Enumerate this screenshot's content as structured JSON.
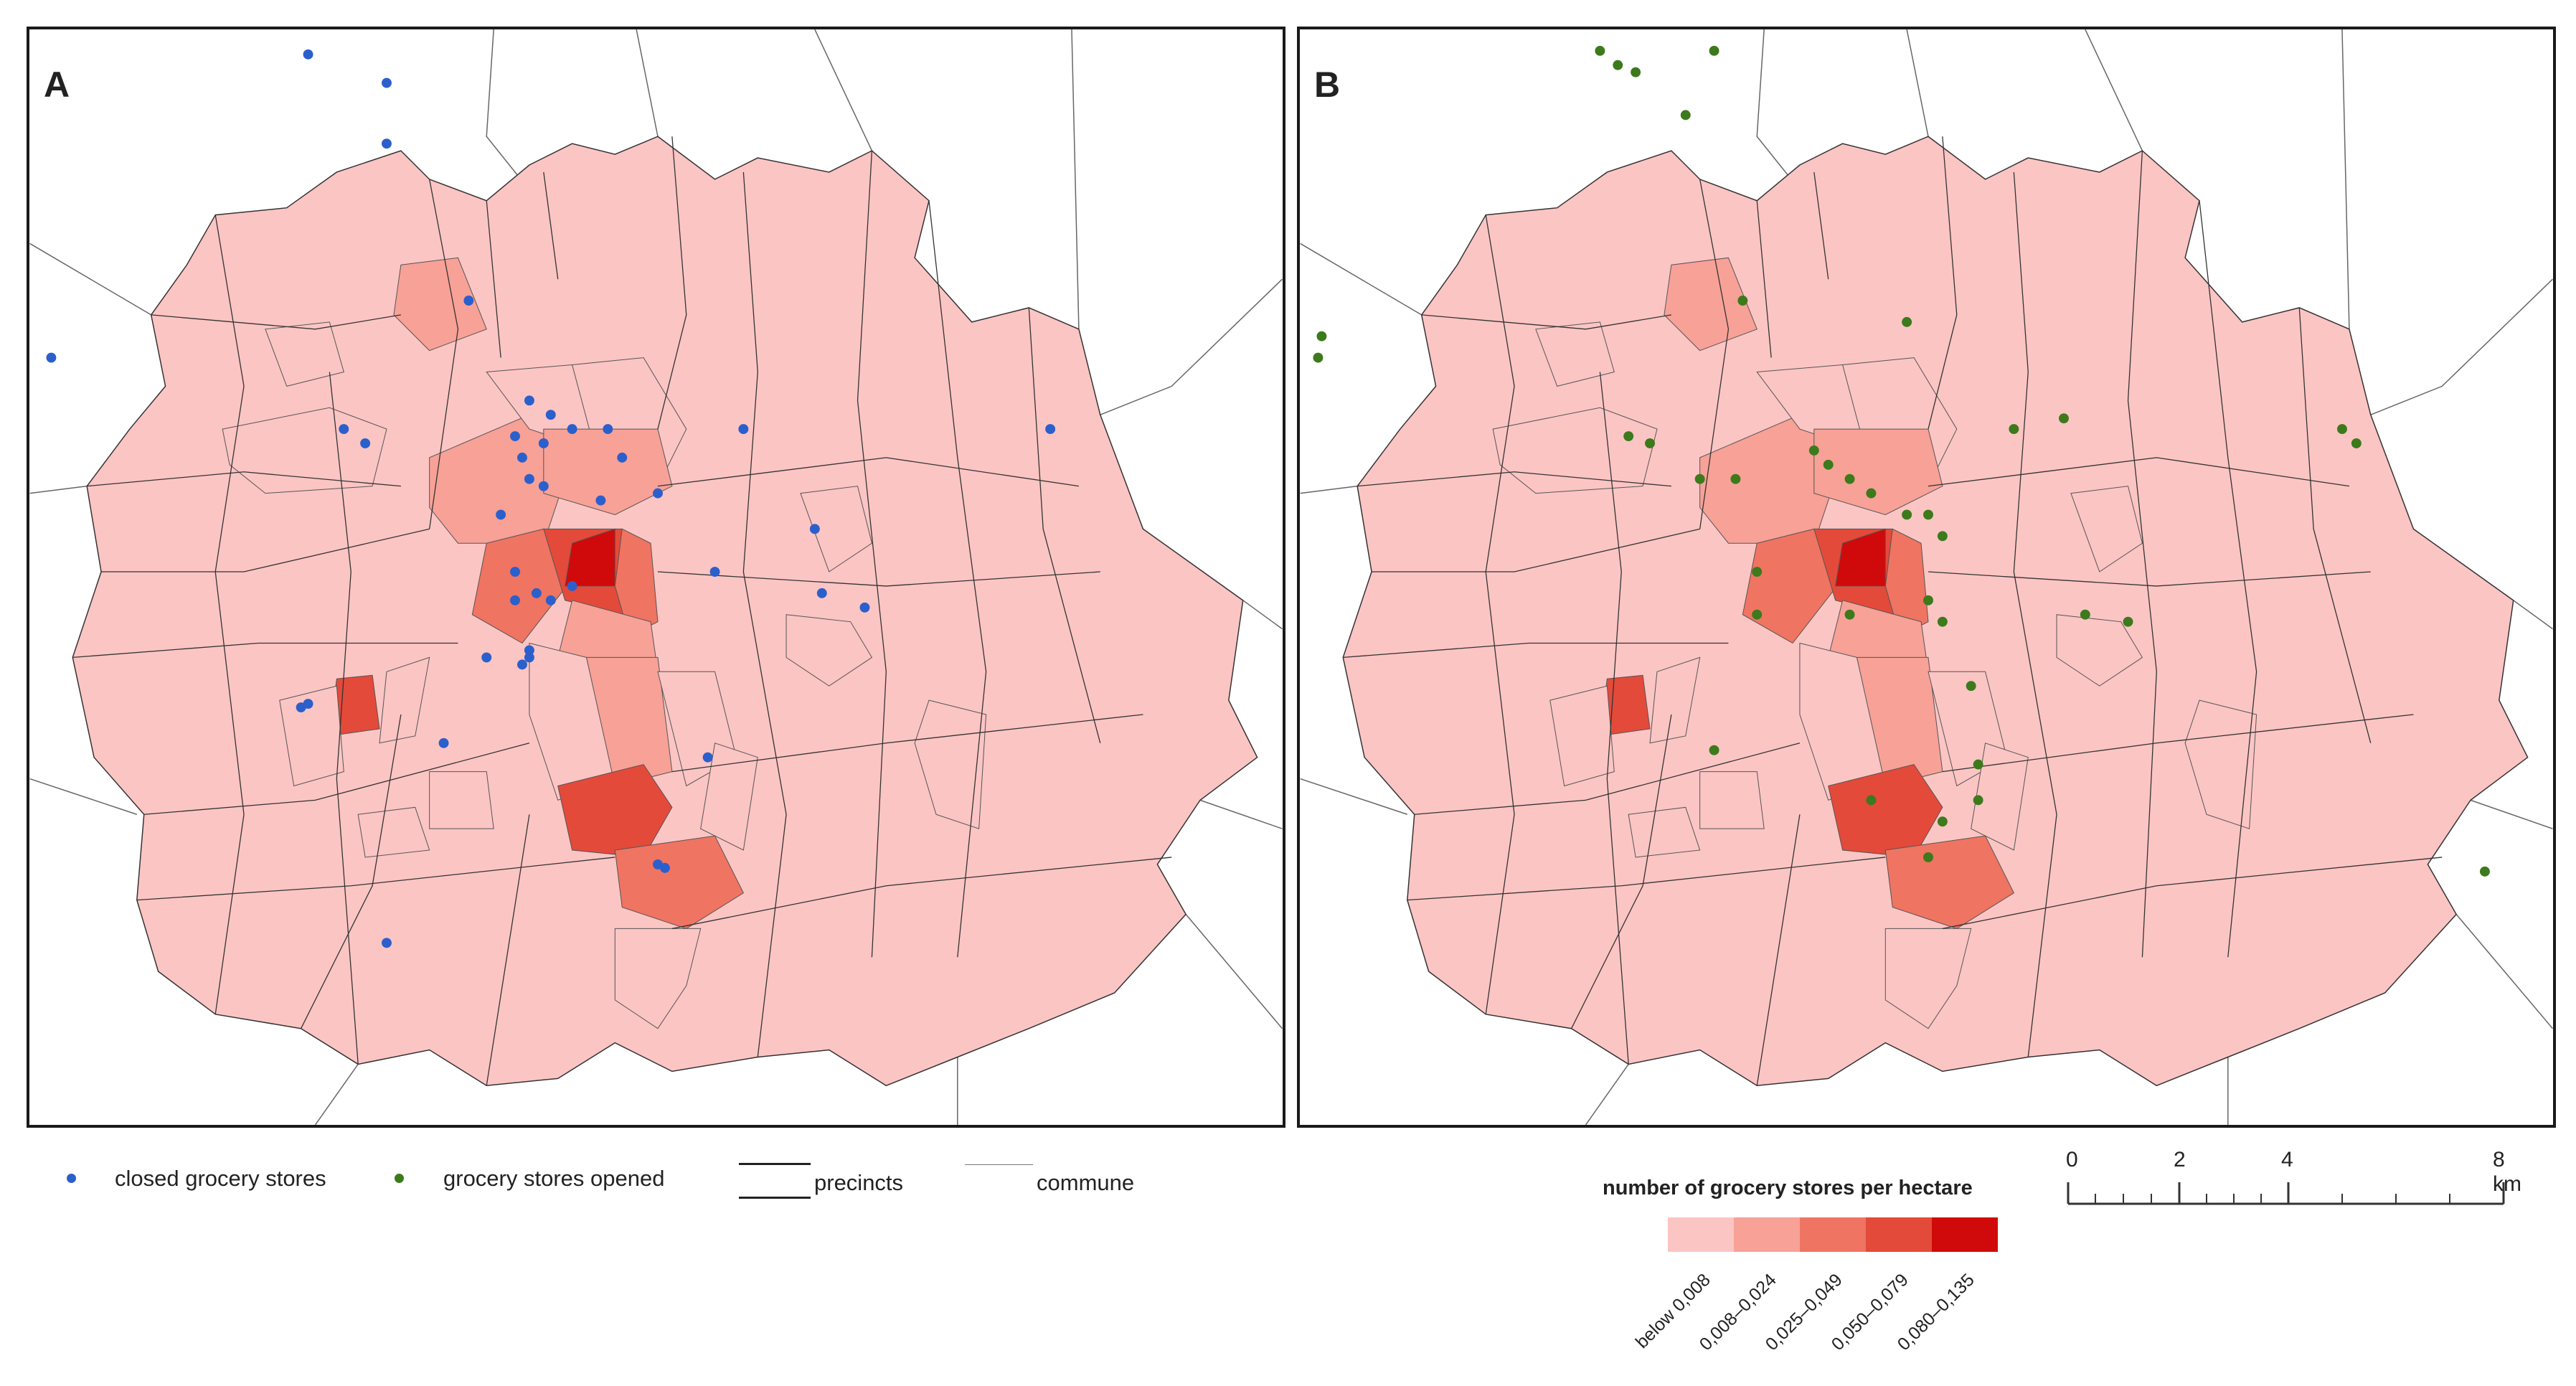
{
  "panels": [
    {
      "id": "A",
      "label": "A",
      "store_layer": "closed grocery stores",
      "store_color": "#2b5fcc"
    },
    {
      "id": "B",
      "label": "B",
      "store_layer": "grocery stores opened",
      "store_color": "#3c7a1c"
    }
  ],
  "legend": {
    "closed_label": "closed grocery stores",
    "opened_label": "grocery stores opened",
    "precincts_label": "precincts",
    "commune_label": "commune",
    "closed_color": "#2b5fcc",
    "opened_color": "#3c7a1c"
  },
  "choropleth": {
    "title": "number of grocery stores per hectare",
    "classes": [
      {
        "label": "below 0,008",
        "color": "#fbc5c4"
      },
      {
        "label": "0,008–0,024",
        "color": "#f7a197"
      },
      {
        "label": "0,025–0,049",
        "color": "#ef7462"
      },
      {
        "label": "0,050–0,079",
        "color": "#e34a3a"
      },
      {
        "label": "0,080–0,135",
        "color": "#d00a0a"
      }
    ]
  },
  "scalebar": {
    "labels": [
      "0",
      "2",
      "4",
      "8 km"
    ]
  },
  "icons": {
    "closed_marker": "blue-dot-icon",
    "opened_marker": "green-dot-icon"
  }
}
